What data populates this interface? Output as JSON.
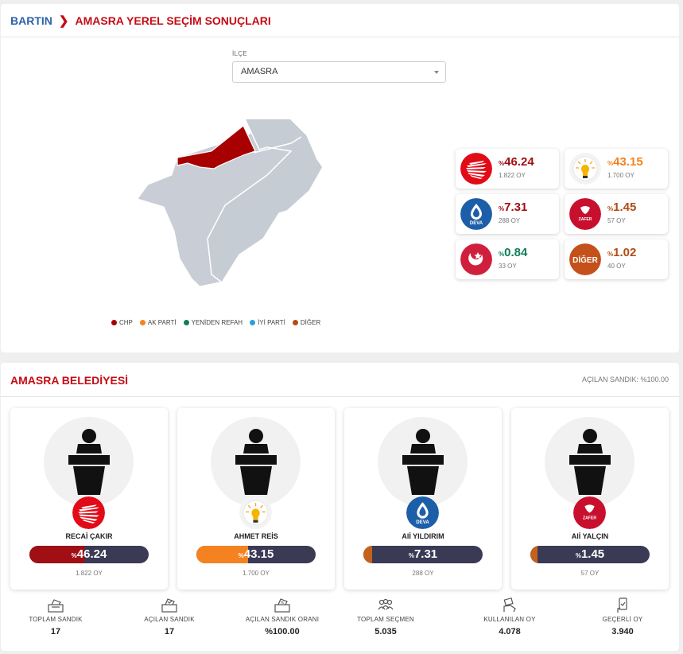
{
  "breadcrumb": {
    "province": "BARTIN",
    "title": "AMASRA YEREL SEÇİM SONUÇLARI"
  },
  "filter": {
    "label": "İLÇE",
    "selected": "AMASRA"
  },
  "legend": [
    {
      "label": "CHP",
      "color": "#a80000"
    },
    {
      "label": "AK PARTİ",
      "color": "#f58220"
    },
    {
      "label": "YENİDEN REFAH",
      "color": "#0f7d5a"
    },
    {
      "label": "İYİ PARTİ",
      "color": "#2a9fd8"
    },
    {
      "label": "DİĞER",
      "color": "#b24c13"
    }
  ],
  "results": [
    {
      "party": "CHP",
      "percent": "46.24",
      "votes": "1.822 OY",
      "color": "#a00f14",
      "icon": "chp-logo-icon"
    },
    {
      "party": "AK PARTİ",
      "percent": "43.15",
      "votes": "1.700 OY",
      "color": "#f58220",
      "icon": "ak-parti-logo-icon"
    },
    {
      "party": "DEVA",
      "percent": "7.31",
      "votes": "288 OY",
      "color": "#a00f14",
      "icon": "deva-logo-icon"
    },
    {
      "party": "ZAFER",
      "percent": "1.45",
      "votes": "57 OY",
      "color": "#b24c13",
      "icon": "zafer-logo-icon"
    },
    {
      "party": "YENİDEN REFAH",
      "percent": "0.84",
      "votes": "33 OY",
      "color": "#0f7d5a",
      "icon": "yeniden-refah-logo-icon"
    },
    {
      "party": "DİĞER",
      "percent": "1.02",
      "votes": "40 OY",
      "color": "#b24c13",
      "icon": "diger-logo-icon",
      "logo_text": "DİĞER"
    }
  ],
  "municipality": {
    "title": "AMASRA BELEDİYESİ",
    "opened_boxes": "AÇILAN SANDIK: %100.00"
  },
  "percent_prefix": "%",
  "candidates": [
    {
      "name": "RECAİ ÇAKIR",
      "percent": "46.24",
      "share": 0.4624,
      "votes": "1.822 OY",
      "color": "#a00f14",
      "party_icon": "chp-logo-icon"
    },
    {
      "name": "AHMET REİS",
      "percent": "43.15",
      "share": 0.4315,
      "votes": "1.700 OY",
      "color": "#f58220",
      "party_icon": "ak-parti-logo-icon"
    },
    {
      "name": "Alİ YILDIRIM",
      "percent": "7.31",
      "share": 0.0731,
      "votes": "288 OY",
      "color": "#c4621d",
      "party_icon": "deva-logo-icon"
    },
    {
      "name": "Alİ YALÇIN",
      "percent": "1.45",
      "share": 0.0145,
      "votes": "57 OY",
      "color": "#c4621d",
      "party_icon": "zafer-logo-icon"
    }
  ],
  "stats": [
    {
      "label": "TOPLAM SANDIK",
      "value": "17",
      "icon": "ballot-box-icon"
    },
    {
      "label": "AÇILAN SANDIK",
      "value": "17",
      "icon": "ballot-box-check-icon"
    },
    {
      "label": "AÇILAN SANDIK ORANI",
      "value": "%100.00",
      "icon": "ballot-box-percent-icon"
    },
    {
      "label": "TOPLAM SEÇMEN",
      "value": "5.035",
      "icon": "voters-icon"
    },
    {
      "label": "KULLANILAN OY",
      "value": "4.078",
      "icon": "vote-hand-icon"
    },
    {
      "label": "GEÇERLİ OY",
      "value": "3.940",
      "icon": "valid-vote-icon"
    }
  ]
}
